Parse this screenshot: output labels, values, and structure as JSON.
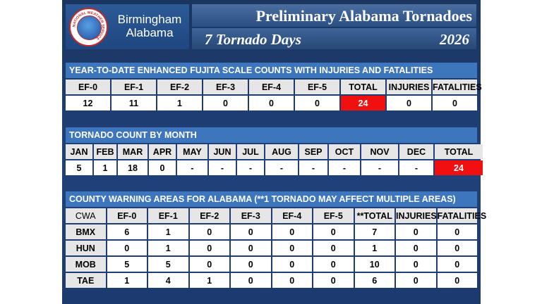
{
  "header": {
    "office": "Birmingham Alabama",
    "office_line1": "Birmingham",
    "office_line2": "Alabama",
    "seal_text": "NATIONAL WEATHER SERVICE",
    "title": "Preliminary Alabama Tornadoes",
    "tornado_days": "7 Tornado Days",
    "year": "2026"
  },
  "ef_section": {
    "heading": "YEAR-TO-DATE ENHANCED FUJITA SCALE COUNTS WITH INJURIES AND FATALITIES",
    "columns": [
      "EF-0",
      "EF-1",
      "EF-2",
      "EF-3",
      "EF-4",
      "EF-5",
      "TOTAL",
      "INJURIES",
      "FATALITIES"
    ],
    "values": [
      "12",
      "11",
      "1",
      "0",
      "0",
      "0",
      "24",
      "0",
      "0"
    ]
  },
  "month_section": {
    "heading": "TORNADO COUNT BY MONTH",
    "columns": [
      "JAN",
      "FEB",
      "MAR",
      "APR",
      "MAY",
      "JUN",
      "JUL",
      "AUG",
      "SEP",
      "OCT",
      "NOV",
      "DEC",
      "TOTAL"
    ],
    "values": [
      "5",
      "1",
      "18",
      "0",
      "-",
      "-",
      "-",
      "-",
      "-",
      "-",
      "-",
      "-",
      "24"
    ]
  },
  "cwa_section": {
    "heading": "COUNTY WARNING AREAS FOR ALABAMA (**1 TORNADO MAY AFFECT MULTIPLE AREAS)",
    "columns": [
      "CWA",
      "EF-0",
      "EF-1",
      "EF-2",
      "EF-3",
      "EF-4",
      "EF-5",
      "**TOTAL",
      "INJURIES",
      "FATALITIES"
    ],
    "rows": [
      [
        "BMX",
        "6",
        "1",
        "0",
        "0",
        "0",
        "0",
        "7",
        "0",
        "0"
      ],
      [
        "HUN",
        "0",
        "1",
        "0",
        "0",
        "0",
        "0",
        "1",
        "0",
        "0"
      ],
      [
        "MOB",
        "5",
        "5",
        "0",
        "0",
        "0",
        "0",
        "10",
        "0",
        "0"
      ],
      [
        "TAE",
        "1",
        "4",
        "1",
        "0",
        "0",
        "0",
        "6",
        "0",
        "0"
      ]
    ]
  },
  "colors": {
    "accent_red": "#f01010",
    "section_blue": "#3d76bd",
    "panel_navy": "#1a3560"
  }
}
